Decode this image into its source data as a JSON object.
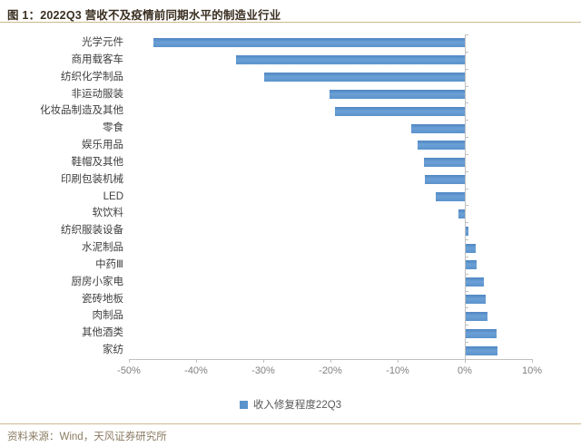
{
  "title": "图 1：2022Q3 营收不及疫情前同期水平的制造业行业",
  "source": "资料来源：Wind，天风证券研究所",
  "legend": {
    "label": "收入修复程度22Q3",
    "marker": "blue-square"
  },
  "colors": {
    "bar": "#5b93cc",
    "title_text": "#3a2f21",
    "divider": "#cdb98d",
    "axis": "#bfbfbf",
    "axis_text": "#7f7f7f",
    "category_text": "#3f3f3f",
    "source_text": "#8b7b63"
  },
  "chart_data": {
    "type": "bar",
    "orientation": "horizontal",
    "title": "图 1：2022Q3 营收不及疫情前同期水平的制造业行业",
    "series_name": "收入修复程度22Q3",
    "categories": [
      "光学元件",
      "商用载客车",
      "纺织化学制品",
      "非运动服装",
      "化妆品制造及其他",
      "零食",
      "娱乐用品",
      "鞋帽及其他",
      "印刷包装机械",
      "LED",
      "软饮料",
      "纺织服装设备",
      "水泥制品",
      "中药Ⅲ",
      "厨房小家电",
      "瓷砖地板",
      "肉制品",
      "其他酒类",
      "家纺"
    ],
    "values": [
      -46.4,
      -34.1,
      -29.9,
      -20.1,
      -19.3,
      -8.0,
      -7.0,
      -6.1,
      -6.0,
      -4.3,
      -1.0,
      0.5,
      1.6,
      1.7,
      2.9,
      3.1,
      3.4,
      4.7,
      4.8
    ],
    "unit": "%",
    "xlim": [
      -50,
      10
    ],
    "x_ticks": [
      -50,
      -40,
      -30,
      -20,
      -10,
      0,
      10
    ],
    "x_tick_labels": [
      "-50%",
      "-40%",
      "-30%",
      "-20%",
      "-10%",
      "0%",
      "10%"
    ],
    "grid": false,
    "legend_position": "bottom"
  }
}
